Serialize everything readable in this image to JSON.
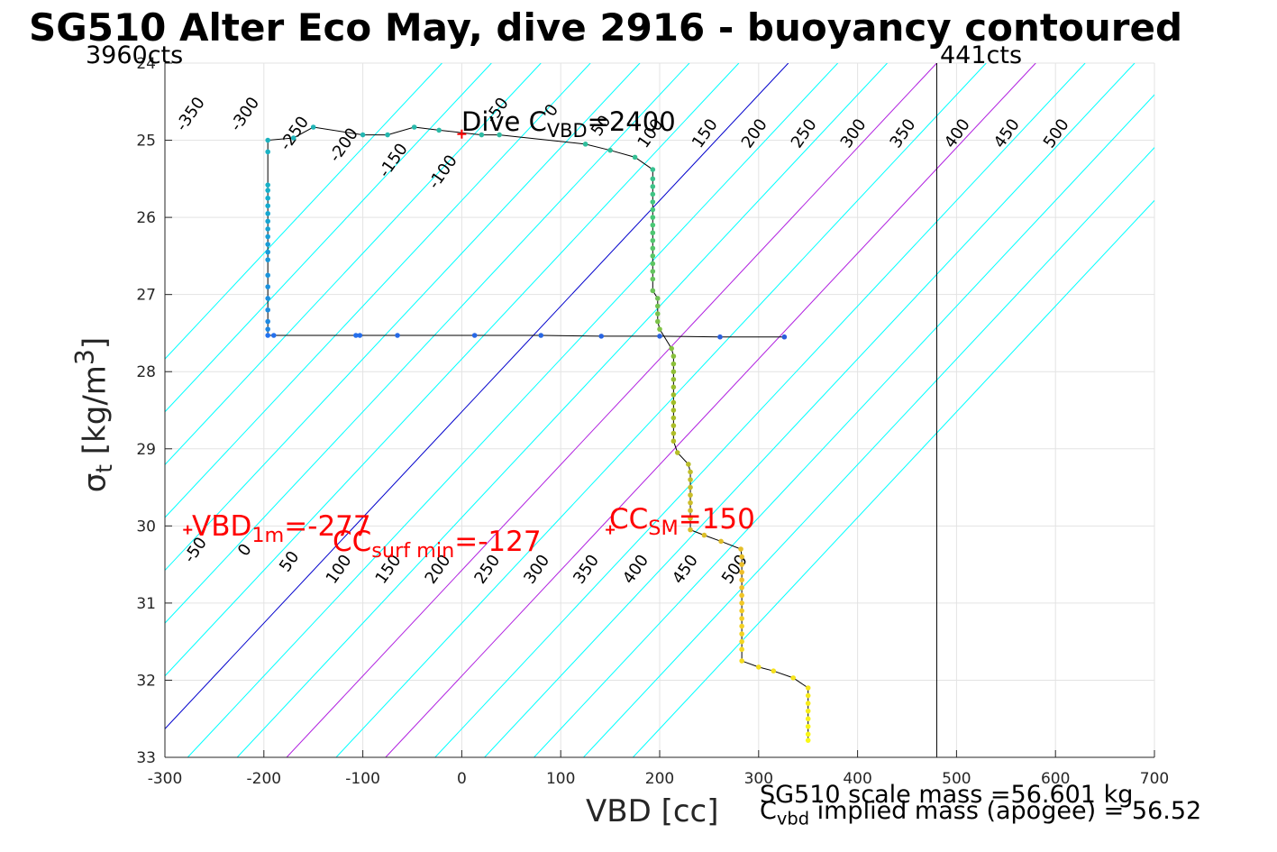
{
  "title": "SG510 Alter Eco May, dive 2916 - buoyancy contoured",
  "counts_left": "3960cts",
  "counts_right": "441cts",
  "xlabel": "VBD [cc]",
  "ylabel": {
    "main": "σ",
    "sub": "t",
    "unit": " [kg/m",
    "sup": "3",
    "close": "]"
  },
  "notes": {
    "scale_mass": "SG510 scale mass =56.601 kg",
    "implied_main": "C",
    "implied_sub": "vbd",
    "implied_rest": " implied mass (apogee) = 56.52",
    "dive_c_main": "Dive C",
    "dive_c_sub": "VBD",
    "dive_c_val": "=2400",
    "vbd1m_main": "VBD",
    "vbd1m_sub": "1m",
    "vbd1m_val": "=-277",
    "ccsurf_main": "CC",
    "ccsurf_sub": "surf min",
    "ccsurf_val": "=-127",
    "ccsm_main": "CC",
    "ccsm_sub": "SM",
    "ccsm_val": "=150"
  },
  "colors": {
    "contour": "#00ffff",
    "zero": "#0000cc",
    "highlight": "#b020e0",
    "marker": "#ff0000"
  },
  "chart_data": {
    "type": "scatter",
    "xlim": [
      -300,
      700
    ],
    "ylim": [
      24,
      33
    ],
    "y_reversed": true,
    "grid": true,
    "xticks": [
      -300,
      -200,
      -100,
      0,
      100,
      200,
      300,
      400,
      500,
      600,
      700
    ],
    "yticks": [
      24,
      25,
      26,
      27,
      28,
      29,
      30,
      31,
      32,
      33
    ],
    "vertical_line_x": 480,
    "contour_slope_cc_per_sigma": 73,
    "contour_levels": [
      -350,
      -300,
      -250,
      -200,
      -150,
      -100,
      -50,
      0,
      50,
      100,
      150,
      200,
      250,
      300,
      350,
      400,
      450,
      500
    ],
    "highlight_levels": [
      150,
      250
    ],
    "top_labels": [
      {
        "text": "-350",
        "x": -270,
        "y": 24.7
      },
      {
        "text": "-300",
        "x": -215,
        "y": 24.7
      },
      {
        "text": "-250",
        "x": -165,
        "y": 24.95
      },
      {
        "text": "-200",
        "x": -115,
        "y": 25.1
      },
      {
        "text": "-150",
        "x": -65,
        "y": 25.3
      },
      {
        "text": "-100",
        "x": -15,
        "y": 25.45
      },
      {
        "text": "-50",
        "x": 40,
        "y": 24.65
      },
      {
        "text": "0",
        "x": 95,
        "y": 24.65
      },
      {
        "text": "50",
        "x": 145,
        "y": 24.85
      },
      {
        "text": "100",
        "x": 195,
        "y": 24.95
      },
      {
        "text": "150",
        "x": 250,
        "y": 24.95
      },
      {
        "text": "200",
        "x": 300,
        "y": 24.95
      },
      {
        "text": "250",
        "x": 350,
        "y": 24.95
      },
      {
        "text": "300",
        "x": 400,
        "y": 24.95
      },
      {
        "text": "350",
        "x": 450,
        "y": 24.95
      },
      {
        "text": "400",
        "x": 505,
        "y": 24.95
      },
      {
        "text": "450",
        "x": 555,
        "y": 24.95
      },
      {
        "text": "500",
        "x": 605,
        "y": 24.95
      }
    ],
    "bottom_labels": [
      {
        "text": "-50",
        "x": -265,
        "y": 30.35
      },
      {
        "text": "0",
        "x": -215,
        "y": 30.35
      },
      {
        "text": "50",
        "x": -170,
        "y": 30.5
      },
      {
        "text": "100",
        "x": -120,
        "y": 30.6
      },
      {
        "text": "150",
        "x": -70,
        "y": 30.6
      },
      {
        "text": "200",
        "x": -20,
        "y": 30.6
      },
      {
        "text": "250",
        "x": 30,
        "y": 30.6
      },
      {
        "text": "300",
        "x": 80,
        "y": 30.6
      },
      {
        "text": "350",
        "x": 130,
        "y": 30.6
      },
      {
        "text": "400",
        "x": 180,
        "y": 30.6
      },
      {
        "text": "450",
        "x": 230,
        "y": 30.6
      },
      {
        "text": "500",
        "x": 280,
        "y": 30.6
      }
    ],
    "markers": [
      {
        "x": -277,
        "y": 30.05
      },
      {
        "x": 0,
        "y": 24.92
      },
      {
        "x": 150,
        "y": 30.05
      }
    ],
    "series": [
      {
        "points": [
          [
            326,
            27.55
          ],
          [
            261,
            27.55
          ],
          [
            200,
            27.54
          ],
          [
            141,
            27.54
          ],
          [
            80,
            27.53
          ],
          [
            13,
            27.53
          ],
          [
            -65,
            27.53
          ],
          [
            -103,
            27.53
          ],
          [
            -107,
            27.53
          ],
          [
            -190,
            27.53
          ],
          [
            -196,
            27.53
          ],
          [
            -196,
            27.45
          ],
          [
            -196,
            27.35
          ],
          [
            -196,
            27.2
          ],
          [
            -196,
            27.05
          ],
          [
            -196,
            26.9
          ],
          [
            -196,
            26.75
          ],
          [
            -196,
            26.55
          ],
          [
            -196,
            26.45
          ],
          [
            -196,
            26.35
          ],
          [
            -196,
            26.25
          ],
          [
            -196,
            26.15
          ],
          [
            -196,
            26.05
          ],
          [
            -196,
            25.95
          ],
          [
            -196,
            25.85
          ],
          [
            -196,
            25.75
          ],
          [
            -196,
            25.65
          ],
          [
            -196,
            25.58
          ],
          [
            -196,
            25.15
          ],
          [
            -196,
            25.0
          ],
          [
            -170,
            24.97
          ],
          [
            -150,
            24.83
          ],
          [
            -100,
            24.93
          ],
          [
            -75,
            24.93
          ],
          [
            -48,
            24.83
          ],
          [
            -23,
            24.87
          ],
          [
            20,
            24.93
          ],
          [
            38,
            24.93
          ],
          [
            125,
            25.05
          ],
          [
            150,
            25.13
          ],
          [
            175,
            25.22
          ],
          [
            193,
            25.38
          ],
          [
            193,
            25.5
          ],
          [
            193,
            25.6
          ],
          [
            193,
            25.7
          ],
          [
            193,
            25.8
          ],
          [
            193,
            25.9
          ],
          [
            193,
            26.0
          ],
          [
            193,
            26.1
          ],
          [
            193,
            26.2
          ],
          [
            193,
            26.3
          ],
          [
            193,
            26.4
          ],
          [
            193,
            26.5
          ],
          [
            193,
            26.6
          ],
          [
            193,
            26.7
          ],
          [
            193,
            26.8
          ],
          [
            193,
            26.95
          ],
          [
            198,
            27.05
          ],
          [
            198,
            27.15
          ],
          [
            198,
            27.25
          ],
          [
            198,
            27.35
          ],
          [
            200,
            27.45
          ],
          [
            212,
            27.7
          ],
          [
            214,
            27.8
          ],
          [
            214,
            27.9
          ],
          [
            214,
            28.0
          ],
          [
            214,
            28.1
          ],
          [
            214,
            28.2
          ],
          [
            214,
            28.3
          ],
          [
            214,
            28.4
          ],
          [
            214,
            28.5
          ],
          [
            214,
            28.6
          ],
          [
            214,
            28.7
          ],
          [
            214,
            28.8
          ],
          [
            214,
            28.9
          ],
          [
            218,
            29.05
          ],
          [
            229,
            29.2
          ],
          [
            231,
            29.3
          ],
          [
            231,
            29.4
          ],
          [
            231,
            29.5
          ],
          [
            231,
            29.6
          ],
          [
            231,
            29.7
          ],
          [
            231,
            29.8
          ],
          [
            231,
            29.9
          ],
          [
            231,
            30.05
          ],
          [
            245,
            30.12
          ],
          [
            262,
            30.2
          ],
          [
            282,
            30.3
          ],
          [
            283,
            30.4
          ],
          [
            283,
            30.5
          ],
          [
            283,
            30.6
          ],
          [
            283,
            30.7
          ],
          [
            283,
            30.8
          ],
          [
            283,
            30.9
          ],
          [
            283,
            31.0
          ],
          [
            283,
            31.1
          ],
          [
            283,
            31.2
          ],
          [
            283,
            31.3
          ],
          [
            283,
            31.4
          ],
          [
            283,
            31.5
          ],
          [
            283,
            31.6
          ],
          [
            283,
            31.75
          ],
          [
            300,
            31.83
          ],
          [
            315,
            31.88
          ],
          [
            335,
            31.97
          ],
          [
            350,
            32.1
          ],
          [
            350,
            32.2
          ],
          [
            350,
            32.3
          ],
          [
            350,
            32.4
          ],
          [
            350,
            32.5
          ],
          [
            350,
            32.6
          ],
          [
            350,
            32.7
          ],
          [
            350,
            32.78
          ]
        ]
      }
    ]
  }
}
